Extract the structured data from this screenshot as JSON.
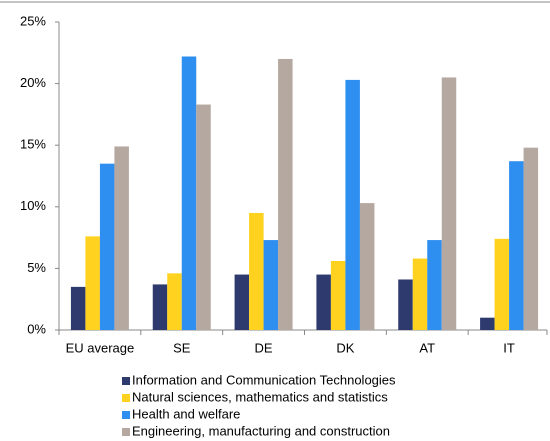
{
  "chart_data": {
    "type": "bar",
    "categories": [
      "EU average",
      "SE",
      "DE",
      "DK",
      "AT",
      "IT"
    ],
    "series": [
      {
        "name": "Information and Communication Technologies",
        "color": "#2e3a6e",
        "values": [
          3.5,
          3.7,
          4.5,
          4.5,
          4.1,
          1.0
        ]
      },
      {
        "name": "Natural sciences, mathematics and statistics",
        "color": "#ffd21f",
        "values": [
          7.6,
          4.6,
          9.5,
          5.6,
          5.8,
          7.4
        ]
      },
      {
        "name": "Health and welfare",
        "color": "#2f8ff0",
        "values": [
          13.5,
          22.2,
          7.3,
          20.3,
          7.3,
          13.7
        ]
      },
      {
        "name": "Engineering, manufacturing and construction",
        "color": "#b5a8a0",
        "values": [
          14.9,
          18.3,
          22.0,
          10.3,
          20.5,
          14.8
        ]
      }
    ],
    "ylim": [
      0,
      25
    ],
    "yticks": [
      {
        "value": 0,
        "label": "0%"
      },
      {
        "value": 5,
        "label": "5%"
      },
      {
        "value": 10,
        "label": "10%"
      },
      {
        "value": 15,
        "label": "15%"
      },
      {
        "value": 20,
        "label": "20%"
      },
      {
        "value": 25,
        "label": "25%"
      }
    ],
    "legend": "bottom"
  }
}
